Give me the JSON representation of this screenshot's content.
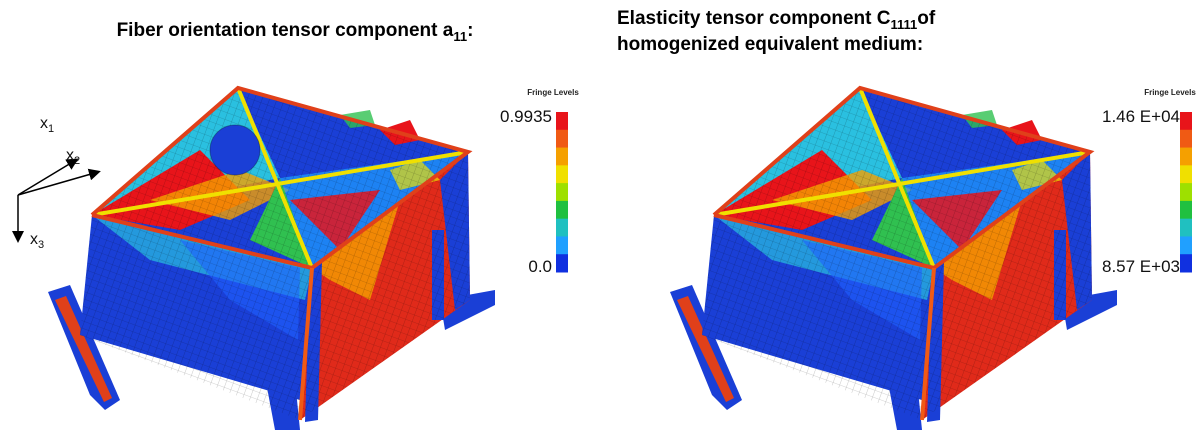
{
  "panels": [
    {
      "title": [
        {
          "text": "Fiber orientation tensor component a",
          "sub": "11",
          "tail": ":"
        }
      ],
      "legend": {
        "title": "Fringe Levels",
        "max": "0.9935",
        "min": "0.0"
      },
      "axes": [
        {
          "text": "x",
          "sub": "1"
        },
        {
          "text": "x",
          "sub": "2"
        },
        {
          "text": "x",
          "sub": "3"
        }
      ]
    },
    {
      "title": [
        {
          "text": "Elasticity tensor component C",
          "sub": "1111",
          "tail": "of"
        },
        {
          "text": "homogenized equivalent medium:"
        }
      ],
      "legend": {
        "title": "Fringe Levels",
        "max": "1.46 E+04",
        "min": "8.57 E+03"
      }
    }
  ]
}
